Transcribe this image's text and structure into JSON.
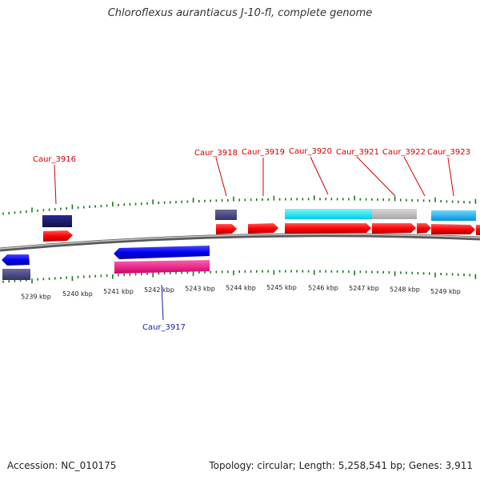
{
  "title": "Chloroflexus aurantiacus J-10-fl, complete genome",
  "footer": {
    "accession": "Accession: NC_010175",
    "summary": "Topology: circular; Length: 5,258,541 bp; Genes: 3,911"
  },
  "colors": {
    "top_label": "#d40000",
    "bottom_label": "#1a1aa6",
    "tick": "#1b7a1b",
    "backbone": "#8c8c8c"
  },
  "scale_labels": [
    "5239 kbp",
    "5240 kbp",
    "5241 kbp",
    "5242 kbp",
    "5243 kbp",
    "5244 kbp",
    "5245 kbp",
    "5246 kbp",
    "5247 kbp",
    "5248 kbp",
    "5249 kbp"
  ],
  "labels": {
    "caur_3916": "Caur_3916",
    "caur_3917": "Caur_3917",
    "caur_3918": "Caur_3918",
    "caur_3919": "Caur_3919",
    "caur_3920": "Caur_3920",
    "caur_3921": "Caur_3921",
    "caur_3922": "Caur_3922",
    "caur_3923": "Caur_3923"
  }
}
